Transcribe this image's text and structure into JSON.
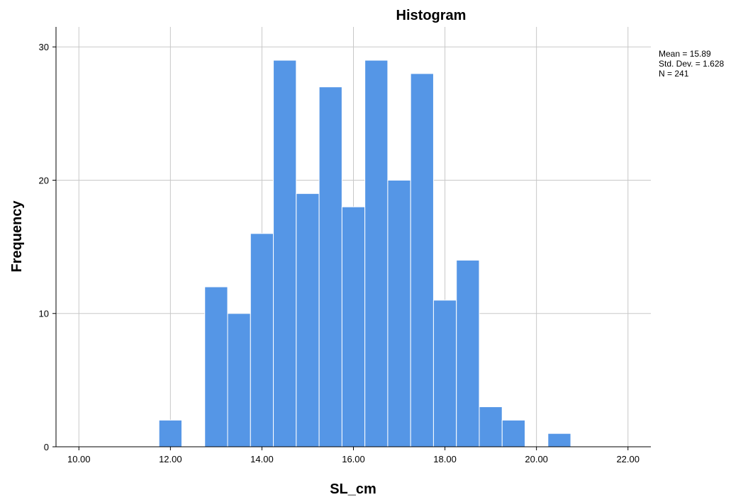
{
  "chart_data": {
    "type": "bar",
    "title": "Histogram",
    "xlabel": "SL_cm",
    "ylabel": "Frequency",
    "xlim": [
      9.5,
      22.5
    ],
    "ylim": [
      0,
      31.5
    ],
    "xticks": [
      10,
      12,
      14,
      16,
      18,
      20,
      22
    ],
    "xtick_labels": [
      "10.00",
      "12.00",
      "14.00",
      "16.00",
      "18.00",
      "20.00",
      "22.00"
    ],
    "yticks": [
      0,
      10,
      20,
      30
    ],
    "ytick_labels": [
      "0",
      "10",
      "20",
      "30"
    ],
    "grid": true,
    "bin_width": 0.5,
    "bins": [
      {
        "x0": 11.75,
        "count": 2
      },
      {
        "x0": 12.75,
        "count": 12
      },
      {
        "x0": 13.25,
        "count": 10
      },
      {
        "x0": 13.75,
        "count": 16
      },
      {
        "x0": 14.25,
        "count": 29
      },
      {
        "x0": 14.75,
        "count": 19
      },
      {
        "x0": 15.25,
        "count": 27
      },
      {
        "x0": 15.75,
        "count": 18
      },
      {
        "x0": 16.25,
        "count": 29
      },
      {
        "x0": 16.75,
        "count": 20
      },
      {
        "x0": 17.25,
        "count": 28
      },
      {
        "x0": 17.75,
        "count": 11
      },
      {
        "x0": 18.25,
        "count": 14
      },
      {
        "x0": 18.75,
        "count": 3
      },
      {
        "x0": 19.25,
        "count": 2
      },
      {
        "x0": 20.25,
        "count": 1
      }
    ],
    "bar_color": "#5596e6",
    "stats": {
      "mean": "Mean = 15.89",
      "std_dev": "Std. Dev. = 1.628",
      "n": "N = 241"
    }
  }
}
